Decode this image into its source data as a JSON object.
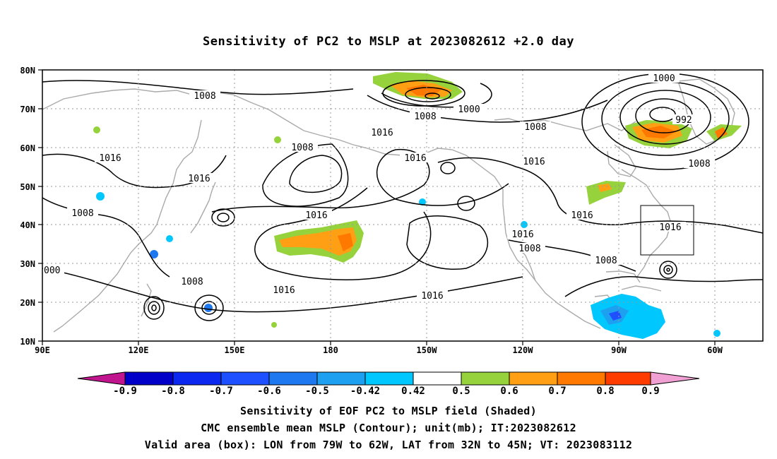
{
  "title": "Sensitivity of PC2 to MSLP at 2023082612 +2.0 day",
  "map": {
    "lat_labels": [
      "80N",
      "70N",
      "60N",
      "50N",
      "40N",
      "30N",
      "20N",
      "10N"
    ],
    "lon_labels": [
      "90E",
      "120E",
      "150E",
      "180",
      "150W",
      "120W",
      "90W",
      "60W"
    ],
    "contour_labels": [
      "1008",
      "1000",
      "1008",
      "1000",
      "992",
      "1008",
      "1016",
      "1016",
      "1016",
      "1016",
      "1008",
      "1008",
      "1016",
      "1016",
      "1016",
      "1008",
      "1016",
      "1016",
      "1008",
      "1008",
      "1016",
      "1008",
      "000",
      "1016"
    ],
    "valid_box": {
      "lon": [
        -79,
        -62
      ],
      "lat": [
        32,
        45
      ]
    },
    "colors": {
      "coast": "#aaaaaa",
      "contour": "#000000",
      "grid": "#999999"
    }
  },
  "colorbar": {
    "labels": [
      "-0.9",
      "-0.8",
      "-0.7",
      "-0.6",
      "-0.5",
      "-0.42",
      "0.42",
      "0.5",
      "0.6",
      "0.7",
      "0.8",
      "0.9"
    ],
    "colors": [
      "#c0158f",
      "#0000c8",
      "#0a28f0",
      "#1e50ff",
      "#1e78f0",
      "#1ea0f0",
      "#00c8ff",
      "#ffffff",
      "#96d23c",
      "#ffa014",
      "#ff7800",
      "#ff3c00",
      "#ff0000",
      "#f0a0d2"
    ]
  },
  "captions": {
    "line1": "Sensitivity of EOF PC2 to MSLP field (Shaded)",
    "line2": "CMC ensemble mean MSLP (Contour); unit(mb); IT:2023082612",
    "line3": "Valid area (box): LON from 79W to 62W, LAT from 32N to 45N; VT: 2023083112"
  }
}
